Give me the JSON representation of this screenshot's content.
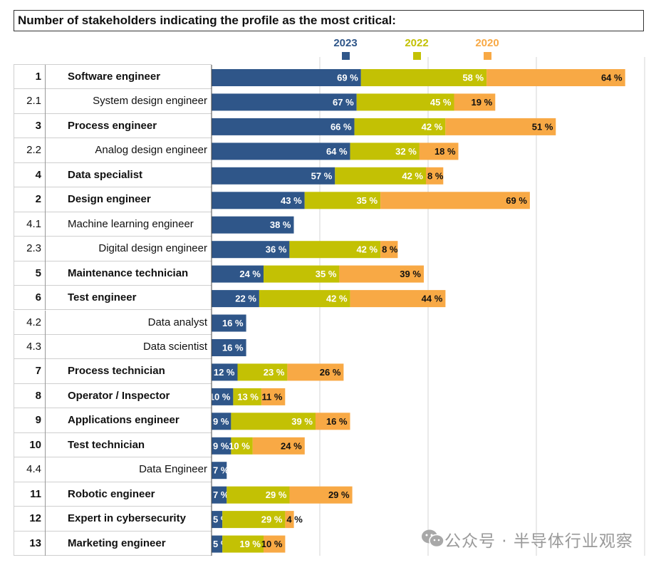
{
  "chart_data": {
    "type": "bar",
    "orientation": "horizontal",
    "stacked": true,
    "title": "Number of stakeholders indicating the profile as the most critical:",
    "xlabel": "",
    "ylabel": "",
    "xlim": [
      0,
      200
    ],
    "grid": true,
    "gridlines_at": [
      0,
      50,
      100,
      150,
      200
    ],
    "legend": {
      "placement": "top-center",
      "entries": [
        {
          "name": "2023",
          "color": "#2f5689"
        },
        {
          "name": "2022",
          "color": "#c3c104"
        },
        {
          "name": "2020",
          "color": "#f8a945"
        }
      ]
    },
    "rows": [
      {
        "rank": "1",
        "label": "Software engineer",
        "style": "main"
      },
      {
        "rank": "2.1",
        "label": "System design engineer",
        "style": "sub"
      },
      {
        "rank": "3",
        "label": "Process engineer",
        "style": "main"
      },
      {
        "rank": "2.2",
        "label": "Analog design engineer",
        "style": "sub"
      },
      {
        "rank": "4",
        "label": "Data specialist",
        "style": "main"
      },
      {
        "rank": "2",
        "label": "Design engineer",
        "style": "main"
      },
      {
        "rank": "4.1",
        "label": "Machine learning engineer",
        "style": "sub-left"
      },
      {
        "rank": "2.3",
        "label": "Digital design engineer",
        "style": "sub"
      },
      {
        "rank": "5",
        "label": "Maintenance technician",
        "style": "main"
      },
      {
        "rank": "6",
        "label": "Test engineer",
        "style": "main"
      },
      {
        "rank": "4.2",
        "label": "Data analyst",
        "style": "sub"
      },
      {
        "rank": "4.3",
        "label": "Data scientist",
        "style": "sub"
      },
      {
        "rank": "7",
        "label": "Process technician",
        "style": "main"
      },
      {
        "rank": "8",
        "label": "Operator / Inspector",
        "style": "main"
      },
      {
        "rank": "9",
        "label": "Applications engineer",
        "style": "main"
      },
      {
        "rank": "10",
        "label": "Test technician",
        "style": "main"
      },
      {
        "rank": "4.4",
        "label": "Data Engineer",
        "style": "sub"
      },
      {
        "rank": "11",
        "label": "Robotic engineer",
        "style": "main"
      },
      {
        "rank": "12",
        "label": "Expert in cybersecurity",
        "style": "main"
      },
      {
        "rank": "13",
        "label": "Marketing engineer",
        "style": "main"
      }
    ],
    "categories": [
      "Software engineer",
      "System design engineer",
      "Process engineer",
      "Analog design engineer",
      "Data specialist",
      "Design engineer",
      "Machine learning engineer",
      "Digital design engineer",
      "Maintenance technician",
      "Test engineer",
      "Data analyst",
      "Data scientist",
      "Process technician",
      "Operator / Inspector",
      "Applications engineer",
      "Test technician",
      "Data Engineer",
      "Robotic engineer",
      "Expert in cybersecurity",
      "Marketing engineer"
    ],
    "series": [
      {
        "name": "2023",
        "color": "#2f5689",
        "label_color": "#ffffff",
        "values": [
          69,
          67,
          66,
          64,
          57,
          43,
          38,
          36,
          24,
          22,
          16,
          16,
          12,
          10,
          9,
          9,
          7,
          7,
          5,
          5
        ]
      },
      {
        "name": "2022",
        "color": "#c3c104",
        "label_color": "#ffffff",
        "values": [
          58,
          45,
          42,
          32,
          42,
          35,
          null,
          42,
          35,
          42,
          null,
          null,
          23,
          13,
          39,
          10,
          null,
          29,
          29,
          19
        ]
      },
      {
        "name": "2020",
        "color": "#f8a945",
        "label_color": "#111111",
        "values": [
          64,
          19,
          51,
          18,
          8,
          69,
          null,
          8,
          39,
          44,
          null,
          null,
          26,
          11,
          16,
          24,
          null,
          29,
          4,
          10
        ]
      }
    ],
    "value_suffix": " %"
  },
  "watermark": {
    "text": "公众号 · 半导体行业观察",
    "icon": "wechat-icon"
  }
}
